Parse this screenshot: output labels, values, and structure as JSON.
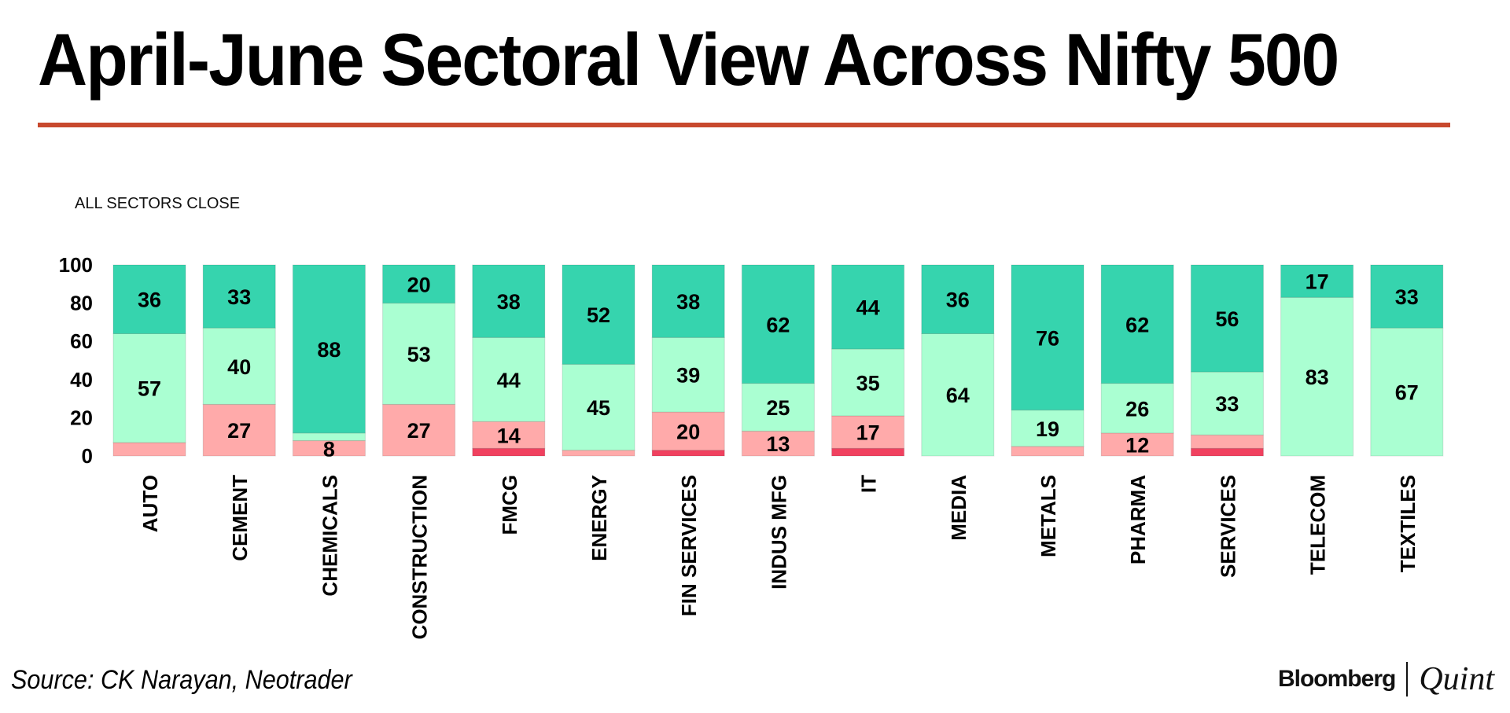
{
  "page": {
    "title": "April-June Sectoral View Across Nifty 500",
    "source": "Source: CK Narayan, Neotrader",
    "brand_primary": "Bloomberg",
    "brand_secondary": "Quint",
    "accent_color": "#c8492e"
  },
  "chart_data": {
    "type": "bar",
    "stacked": true,
    "title": "ALL SECTORS CLOSE",
    "xlabel": "",
    "ylabel": "",
    "ylim": [
      0,
      100
    ],
    "yticks": [
      0,
      20,
      40,
      60,
      80,
      100
    ],
    "categories": [
      "AUTO",
      "CEMENT",
      "CHEMICALS",
      "CONSTRUCTION",
      "FMCG",
      "ENERGY",
      "FIN SERVICES",
      "INDUS MFG",
      "IT",
      "MEDIA",
      "METALS",
      "PHARMA",
      "SERVICES",
      "TELECOM",
      "TEXTILES"
    ],
    "series": [
      {
        "name": "dark red",
        "color": "#f0415f",
        "values": [
          0,
          0,
          0,
          0,
          4,
          0,
          3,
          0,
          4,
          0,
          0,
          0,
          4,
          0,
          0
        ]
      },
      {
        "name": "light red",
        "color": "#ffaaaa",
        "values": [
          7,
          27,
          8,
          27,
          14,
          3,
          20,
          13,
          17,
          0,
          5,
          12,
          7,
          0,
          0
        ],
        "labels": [
          "",
          "27",
          "8",
          "27",
          "14",
          "",
          "20",
          "13",
          "17",
          "",
          "",
          "12",
          "",
          "",
          ""
        ]
      },
      {
        "name": "light green",
        "color": "#aaffd2",
        "values": [
          57,
          40,
          4,
          53,
          44,
          45,
          39,
          25,
          35,
          64,
          19,
          26,
          33,
          83,
          67
        ],
        "labels": [
          "57",
          "40",
          "",
          "53",
          "44",
          "45",
          "39",
          "25",
          "35",
          "64",
          "19",
          "26",
          "33",
          "83",
          "67"
        ]
      },
      {
        "name": "dark green",
        "color": "#36d4ae",
        "values": [
          36,
          33,
          88,
          20,
          38,
          52,
          38,
          62,
          44,
          36,
          76,
          62,
          56,
          17,
          33
        ],
        "labels": [
          "36",
          "33",
          "88",
          "20",
          "38",
          "52",
          "38",
          "62",
          "44",
          "36",
          "76",
          "62",
          "56",
          "17",
          "33"
        ]
      }
    ]
  }
}
